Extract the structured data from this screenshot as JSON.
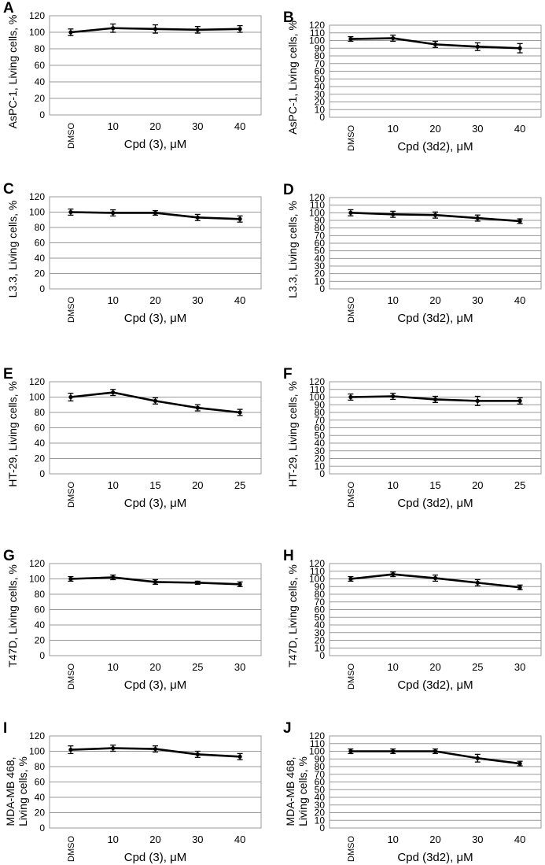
{
  "chart_data": [
    {
      "panel_letter": "A",
      "type": "line",
      "ylabel": "AsPC-1, Living cells, %",
      "xlabel": "Cpd (3), μM",
      "categories": [
        "DMSO",
        "10",
        "20",
        "30",
        "40"
      ],
      "values": [
        100,
        105,
        104,
        103,
        104
      ],
      "errors": [
        4,
        5,
        5,
        4,
        4
      ],
      "ylim": [
        0,
        120
      ],
      "yticks": [
        "0",
        "20",
        "40",
        "60",
        "80",
        "100",
        "120"
      ]
    },
    {
      "panel_letter": "B",
      "type": "line",
      "ylabel": "AsPC-1, Living cells, %",
      "xlabel": "Cpd (3d2), μM",
      "categories": [
        "DMSO",
        "10",
        "20",
        "30",
        "40"
      ],
      "values": [
        102,
        103,
        95,
        92,
        90
      ],
      "errors": [
        3,
        4,
        4,
        5,
        6
      ],
      "ylim": [
        0,
        120
      ],
      "yticks": [
        "0",
        "10",
        "20",
        "30",
        "40",
        "50",
        "60",
        "70",
        "80",
        "90",
        "100",
        "110",
        "120"
      ]
    },
    {
      "panel_letter": "C",
      "type": "line",
      "ylabel": "L3.3, Living cells, %",
      "xlabel": "Cpd (3), μM",
      "categories": [
        "DMSO",
        "10",
        "20",
        "30",
        "40"
      ],
      "values": [
        100,
        99,
        99,
        93,
        91
      ],
      "errors": [
        4,
        4,
        3,
        4,
        4
      ],
      "ylim": [
        0,
        120
      ],
      "yticks": [
        "0",
        "20",
        "40",
        "60",
        "80",
        "100",
        "120"
      ]
    },
    {
      "panel_letter": "D",
      "type": "line",
      "ylabel": "L3.3, Living cells, %",
      "xlabel": "Cpd (3d2), μM",
      "categories": [
        "DMSO",
        "10",
        "20",
        "30",
        "40"
      ],
      "values": [
        100,
        98,
        97,
        93,
        89
      ],
      "errors": [
        4,
        4,
        4,
        4,
        3
      ],
      "ylim": [
        0,
        120
      ],
      "yticks": [
        "0",
        "10",
        "20",
        "30",
        "40",
        "50",
        "60",
        "70",
        "80",
        "90",
        "100",
        "110",
        "120"
      ]
    },
    {
      "panel_letter": "E",
      "type": "line",
      "ylabel": "HT-29, Living cells, %",
      "xlabel": "Cpd (3), μM",
      "categories": [
        "DMSO",
        "10",
        "15",
        "20",
        "25"
      ],
      "values": [
        100,
        106,
        95,
        86,
        80
      ],
      "errors": [
        5,
        4,
        4,
        4,
        4
      ],
      "ylim": [
        0,
        120
      ],
      "yticks": [
        "0",
        "20",
        "40",
        "60",
        "80",
        "100",
        "120"
      ]
    },
    {
      "panel_letter": "F",
      "type": "line",
      "ylabel": "HT-29, Living cells, %",
      "xlabel": "Cpd (3d2), μM",
      "categories": [
        "DMSO",
        "10",
        "15",
        "20",
        "25"
      ],
      "values": [
        100,
        101,
        97,
        95,
        95
      ],
      "errors": [
        4,
        4,
        4,
        6,
        4
      ],
      "ylim": [
        0,
        120
      ],
      "yticks": [
        "0",
        "10",
        "20",
        "30",
        "40",
        "50",
        "60",
        "70",
        "80",
        "90",
        "100",
        "110",
        "120"
      ]
    },
    {
      "panel_letter": "G",
      "type": "line",
      "ylabel": "T47D, Living cells, %",
      "xlabel": "Cpd (3), μM",
      "categories": [
        "DMSO",
        "10",
        "20",
        "25",
        "30"
      ],
      "values": [
        100,
        102,
        96,
        95,
        93
      ],
      "errors": [
        3,
        3,
        3,
        2,
        3
      ],
      "ylim": [
        0,
        120
      ],
      "yticks": [
        "0",
        "20",
        "40",
        "60",
        "80",
        "100",
        "120"
      ]
    },
    {
      "panel_letter": "H",
      "type": "line",
      "ylabel": "T47D, Living cells, %",
      "xlabel": "Cpd (3d2), μM",
      "categories": [
        "DMSO",
        "10",
        "20",
        "25",
        "30"
      ],
      "values": [
        100,
        106,
        101,
        95,
        89
      ],
      "errors": [
        3,
        3,
        4,
        4,
        3
      ],
      "ylim": [
        0,
        120
      ],
      "yticks": [
        "0",
        "10",
        "20",
        "30",
        "40",
        "50",
        "60",
        "70",
        "80",
        "90",
        "100",
        "110",
        "120"
      ]
    },
    {
      "panel_letter": "I",
      "type": "line",
      "ylabel_lines": [
        "MDA-MB 468,",
        "Living cells, %"
      ],
      "xlabel": "Cpd (3), μM",
      "categories": [
        "DMSO",
        "10",
        "20",
        "30",
        "40"
      ],
      "values": [
        102,
        104,
        103,
        96,
        93
      ],
      "errors": [
        5,
        4,
        4,
        4,
        4
      ],
      "ylim": [
        0,
        120
      ],
      "yticks": [
        "0",
        "20",
        "40",
        "60",
        "80",
        "100",
        "120"
      ]
    },
    {
      "panel_letter": "J",
      "type": "line",
      "ylabel_lines": [
        "MDA-MB 468,",
        "Living cells, %"
      ],
      "xlabel": "Cpd (3d2), μM",
      "categories": [
        "DMSO",
        "10",
        "20",
        "30",
        "40"
      ],
      "values": [
        100,
        100,
        100,
        91,
        84
      ],
      "errors": [
        3,
        3,
        3,
        5,
        3
      ],
      "ylim": [
        0,
        120
      ],
      "yticks": [
        "0",
        "10",
        "20",
        "30",
        "40",
        "50",
        "60",
        "70",
        "80",
        "90",
        "100",
        "110",
        "120"
      ]
    }
  ]
}
